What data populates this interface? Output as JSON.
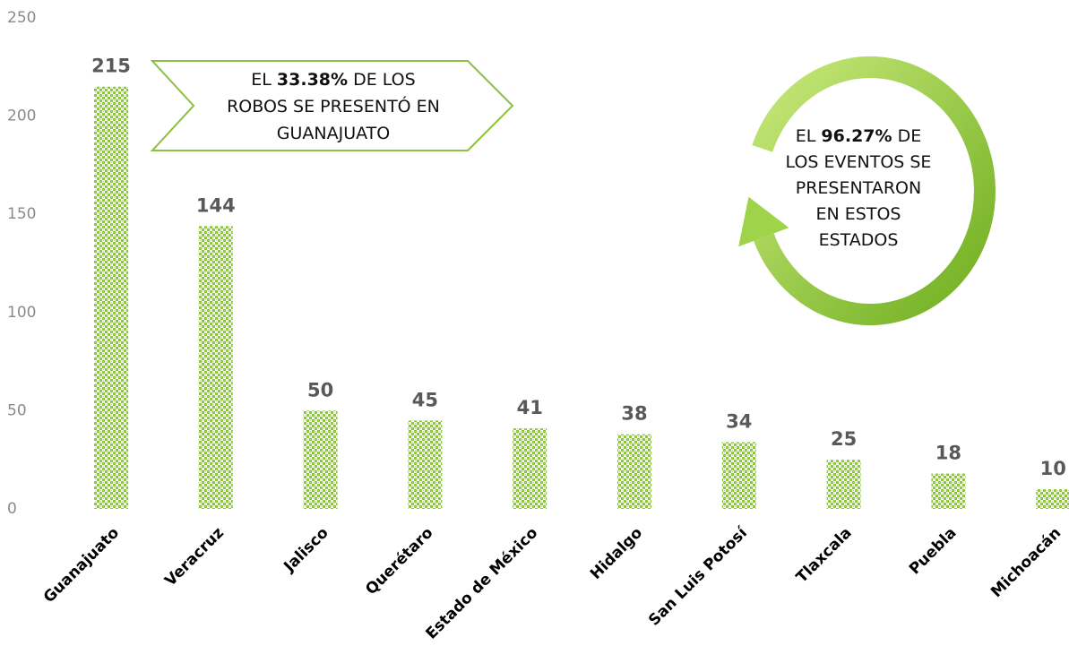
{
  "chart_data": {
    "type": "bar",
    "categories": [
      "Guanajuato",
      "Veracruz",
      "Jalisco",
      "Querétaro",
      "Estado de México",
      "Hidalgo",
      "San Luis Potosí",
      "Tlaxcala",
      "Puebla",
      "Michoacán"
    ],
    "values": [
      215,
      144,
      50,
      45,
      41,
      38,
      34,
      25,
      18,
      10
    ],
    "color": "#8cc63f",
    "ylim": [
      0,
      250
    ],
    "yticks": [
      0,
      50,
      100,
      150,
      200,
      250
    ],
    "grid": false,
    "annotations": [
      {
        "lines": [
          [
            "EL ",
            "33.38%",
            " DE LOS"
          ],
          [
            "ROBOS SE PRESENTÓ EN"
          ],
          [
            "GUANAJUATO"
          ]
        ]
      },
      {
        "lines": [
          [
            "EL ",
            "96.27%",
            " DE"
          ],
          [
            "LOS EVENTOS SE"
          ],
          [
            "PRESENTARON"
          ],
          [
            "EN ESTOS"
          ],
          [
            "ESTADOS"
          ]
        ]
      }
    ]
  }
}
